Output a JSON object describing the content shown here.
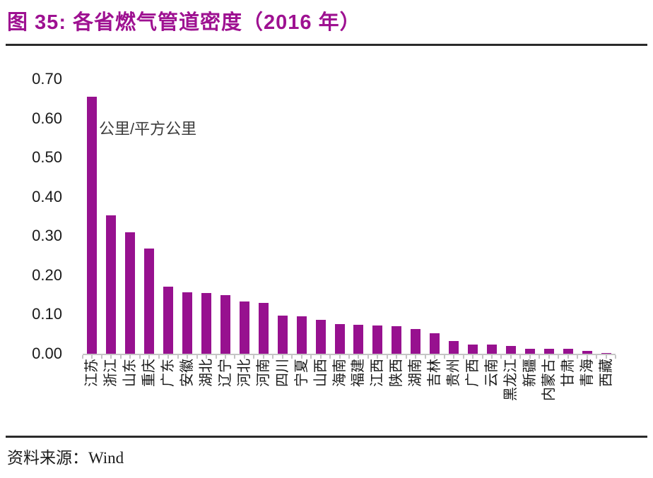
{
  "header": {
    "title": "图 35: 各省燃气管道密度（2016 年）"
  },
  "chart_data": {
    "type": "bar",
    "title": "各省燃气管道密度（2016 年）",
    "unit_label": "公里/平方公里",
    "categories": [
      "江苏",
      "浙江",
      "山东",
      "重庆",
      "广东",
      "安徽",
      "湖北",
      "辽宁",
      "河北",
      "河南",
      "四川",
      "宁夏",
      "山西",
      "海南",
      "福建",
      "江西",
      "陕西",
      "湖南",
      "吉林",
      "贵州",
      "广西",
      "云南",
      "黑龙江",
      "新疆",
      "内蒙古",
      "甘肃",
      "青海",
      "西藏"
    ],
    "values": [
      0.655,
      0.352,
      0.309,
      0.268,
      0.171,
      0.156,
      0.154,
      0.15,
      0.133,
      0.129,
      0.098,
      0.096,
      0.087,
      0.076,
      0.074,
      0.072,
      0.07,
      0.063,
      0.052,
      0.032,
      0.023,
      0.023,
      0.019,
      0.012,
      0.012,
      0.012,
      0.007,
      0.001
    ],
    "xlabel": "",
    "ylabel": "公里/平方公里",
    "ylim": [
      0,
      0.7
    ],
    "y_tick_step": 0.1,
    "y_tick_labels": [
      "0.70",
      "0.60",
      "0.50",
      "0.40",
      "0.30",
      "0.20",
      "0.10",
      "0.00"
    ],
    "grid": "off",
    "legend": "none",
    "x_label_rotation": -90,
    "bar_color": "#97118f"
  },
  "footer": {
    "source": "资料来源：Wind"
  },
  "colors": {
    "title": "#9e1191",
    "bar": "#97118f",
    "axis": "#c5c5c5",
    "text": "#1a1a1a",
    "unit_text": "#3c3c3c"
  }
}
